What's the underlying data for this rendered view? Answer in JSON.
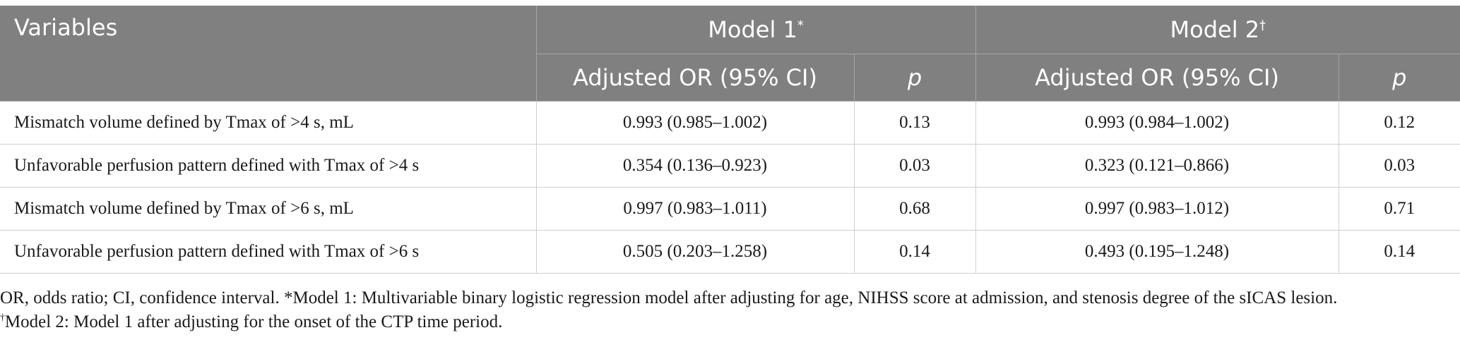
{
  "header": {
    "variables": "Variables",
    "model1": "Model 1",
    "model1_mark": "*",
    "model2": "Model 2",
    "model2_mark": "†",
    "adjusted_or_1": "Adjusted OR (95% CI)",
    "p_1": "p",
    "adjusted_or_2": "Adjusted OR (95% CI)",
    "p_2": "p"
  },
  "rows": [
    {
      "variable": "Mismatch volume defined by Tmax of >4 s, mL",
      "or1": "0.993 (0.985–1.002)",
      "p1": "0.13",
      "or2": "0.993 (0.984–1.002)",
      "p2": "0.12"
    },
    {
      "variable": "Unfavorable perfusion pattern defined with Tmax of >4 s",
      "or1": "0.354 (0.136–0.923)",
      "p1": "0.03",
      "or2": "0.323 (0.121–0.866)",
      "p2": "0.03"
    },
    {
      "variable": "Mismatch volume defined by Tmax of >6 s, mL",
      "or1": "0.997 (0.983–1.011)",
      "p1": "0.68",
      "or2": "0.997 (0.983–1.012)",
      "p2": "0.71"
    },
    {
      "variable": "Unfavorable perfusion pattern defined with Tmax of >6 s",
      "or1": "0.505 (0.203–1.258)",
      "p1": "0.14",
      "or2": "0.493 (0.195–1.248)",
      "p2": "0.14"
    }
  ],
  "footnotes": {
    "line1": "OR, odds ratio; CI, confidence interval. *Model 1: Multivariable binary logistic regression model after adjusting for age, NIHSS score at admission, and stenosis degree of the sICAS lesion.",
    "line2_mark": "†",
    "line2": "Model 2: Model 1 after adjusting for the onset of the CTP time period."
  }
}
